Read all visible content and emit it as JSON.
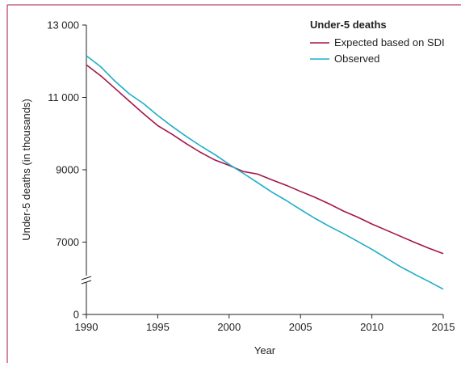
{
  "chart_data": {
    "type": "line",
    "xlabel": "Year",
    "ylabel": "Under-5 deaths (in thousands)",
    "xlim": [
      1990,
      2015
    ],
    "ylim": [
      5000,
      13000
    ],
    "x_ticks": [
      "1990",
      "1995",
      "2000",
      "2005",
      "2010",
      "2015"
    ],
    "y_ticks": [
      "13 000",
      "11 000",
      "9000",
      "7000",
      "0"
    ],
    "y_tick_values": [
      13000,
      11000,
      9000,
      7000,
      5000
    ],
    "axis_break": true,
    "grid": false,
    "legend": {
      "title": "Under-5 deaths",
      "placement": "top-right"
    },
    "x": [
      1990,
      1991,
      1992,
      1993,
      1994,
      1995,
      1996,
      1997,
      1998,
      1999,
      2000,
      2001,
      2002,
      2003,
      2004,
      2005,
      2006,
      2007,
      2008,
      2009,
      2010,
      2011,
      2012,
      2013,
      2014,
      2015
    ],
    "series": [
      {
        "name": "Expected based on SDI",
        "color": "#a4154a",
        "values": [
          11900,
          11600,
          11250,
          10900,
          10550,
          10220,
          9980,
          9720,
          9480,
          9270,
          9120,
          8950,
          8880,
          8720,
          8570,
          8400,
          8240,
          8060,
          7860,
          7690,
          7500,
          7330,
          7160,
          6990,
          6830,
          6680
        ]
      },
      {
        "name": "Observed",
        "color": "#1cadc8",
        "values": [
          12150,
          11850,
          11450,
          11100,
          10830,
          10500,
          10200,
          9920,
          9660,
          9420,
          9150,
          8900,
          8640,
          8380,
          8150,
          7900,
          7660,
          7440,
          7240,
          7020,
          6800,
          6560,
          6320,
          6110,
          5910,
          5700
        ]
      }
    ]
  }
}
